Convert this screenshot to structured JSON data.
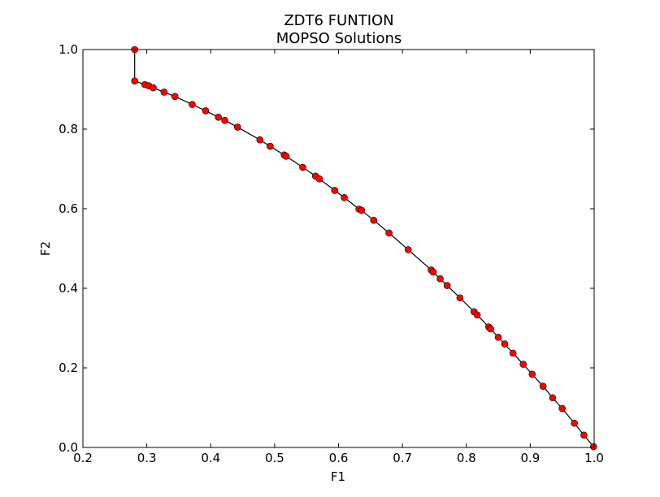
{
  "chart_data": {
    "type": "line",
    "title": "ZDT6 FUNTION",
    "subtitle": "MOPSO Solutions",
    "xlabel": "F1",
    "ylabel": "F2",
    "xlim": [
      0.2,
      1.0
    ],
    "ylim": [
      0.0,
      1.0
    ],
    "xticks": [
      "0.2",
      "0.3",
      "0.4",
      "0.5",
      "0.6",
      "0.7",
      "0.8",
      "0.9",
      "1.0"
    ],
    "yticks": [
      "0.0",
      "0.2",
      "0.4",
      "0.6",
      "0.8",
      "1.0"
    ],
    "grid": false,
    "legend": "none",
    "line_color": "#000000",
    "marker_color": "#ff0000",
    "marker_edge_color": "#000000",
    "series": [
      {
        "x": [
          0.281,
          0.281,
          0.297,
          0.303,
          0.31,
          0.327,
          0.344,
          0.371,
          0.392,
          0.412,
          0.422,
          0.442,
          0.477,
          0.493,
          0.515,
          0.518,
          0.544,
          0.564,
          0.57,
          0.594,
          0.609,
          0.632,
          0.636,
          0.655,
          0.679,
          0.709,
          0.745,
          0.748,
          0.759,
          0.77,
          0.79,
          0.812,
          0.817,
          0.835,
          0.838,
          0.85,
          0.86,
          0.873,
          0.889,
          0.903,
          0.92,
          0.935,
          0.95,
          0.969,
          0.984,
          0.999
        ],
        "y": [
          1.0,
          0.921,
          0.912,
          0.909,
          0.904,
          0.893,
          0.882,
          0.862,
          0.846,
          0.83,
          0.822,
          0.805,
          0.773,
          0.757,
          0.735,
          0.732,
          0.704,
          0.682,
          0.675,
          0.646,
          0.628,
          0.599,
          0.596,
          0.571,
          0.539,
          0.497,
          0.446,
          0.441,
          0.424,
          0.407,
          0.376,
          0.341,
          0.333,
          0.303,
          0.298,
          0.277,
          0.26,
          0.237,
          0.209,
          0.184,
          0.154,
          0.125,
          0.098,
          0.061,
          0.031,
          0.002
        ]
      }
    ]
  }
}
